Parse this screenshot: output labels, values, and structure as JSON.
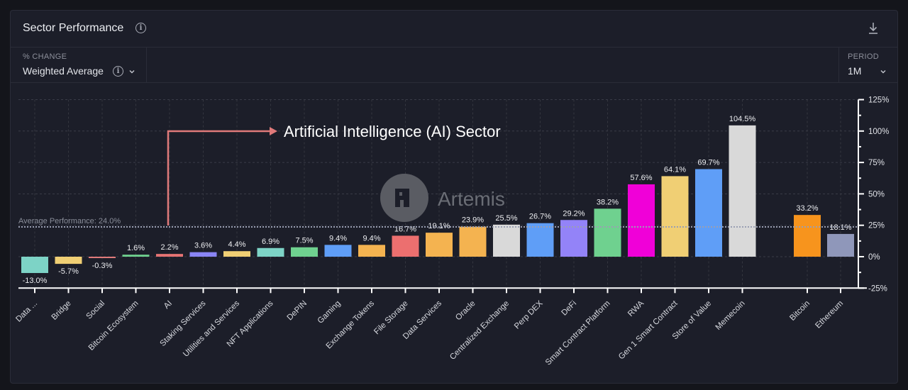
{
  "header": {
    "title": "Sector Performance",
    "info_icon": "info-icon",
    "download_icon": "download-icon"
  },
  "controls": {
    "metric_label": "% CHANGE",
    "metric_value": "Weighted Average",
    "period_label": "PERIOD",
    "period_value": "1M"
  },
  "annotation": {
    "text": "Artificial Intelligence (AI) Sector",
    "color": "#e07a7a"
  },
  "watermark": {
    "text": "Artemis"
  },
  "chart_data": {
    "type": "bar",
    "title": "Sector Performance",
    "ylabel": "% Change",
    "ylim": [
      -25,
      125
    ],
    "yticks": [
      -25,
      0,
      25,
      50,
      75,
      100,
      125
    ],
    "ytick_labels": [
      "-25%",
      "0%",
      "25%",
      "50%",
      "75%",
      "100%",
      "125%"
    ],
    "y_axis_position": "right",
    "grid": true,
    "average_line": {
      "label": "Average Performance: 24.0%",
      "value": 24.0
    },
    "categories": [
      "Data ...",
      "Bridge",
      "Social",
      "Bitcoin Ecosystem",
      "AI",
      "Staking Services",
      "Utilities and Services",
      "NFT Applications",
      "DePIN",
      "Gaming",
      "Exchange Tokens",
      "File Storage",
      "Data Services",
      "Oracle",
      "Centralized Exchange",
      "Perp DEX",
      "DeFi",
      "Smart Contract Platform",
      "RWA",
      "Gen 1 Smart Contract",
      "Store of Value",
      "Memecoin",
      "Bitcoin",
      "Ethereum"
    ],
    "values": [
      -13.0,
      -5.7,
      -0.3,
      1.6,
      2.2,
      3.6,
      4.4,
      6.9,
      7.5,
      9.4,
      9.4,
      16.7,
      19.1,
      23.9,
      25.5,
      26.7,
      29.2,
      38.2,
      57.6,
      64.1,
      69.7,
      104.5,
      33.2,
      18.1
    ],
    "labels": [
      "-13.0%",
      "-5.7%",
      "-0.3%",
      "1.6%",
      "2.2%",
      "3.6%",
      "4.4%",
      "6.9%",
      "7.5%",
      "9.4%",
      "9.4%",
      "16.7%",
      "19.1%",
      "23.9%",
      "25.5%",
      "26.7%",
      "29.2%",
      "38.2%",
      "57.6%",
      "64.1%",
      "69.7%",
      "104.5%",
      "33.2%",
      "18.1%"
    ],
    "colors": [
      "#7dd3c6",
      "#f0cf74",
      "#e07a7a",
      "#6fd18f",
      "#e57373",
      "#8a85f5",
      "#f0cf74",
      "#7dd3c6",
      "#6fd18f",
      "#5f9ef7",
      "#f4b350",
      "#ec6f6f",
      "#f4b350",
      "#f4b350",
      "#d9d9d9",
      "#5f9ef7",
      "#9383f8",
      "#6fd18f",
      "#f000d8",
      "#f0cf74",
      "#5f9ef7",
      "#d9d9d9",
      "#f7941d",
      "#8f97ba"
    ]
  }
}
